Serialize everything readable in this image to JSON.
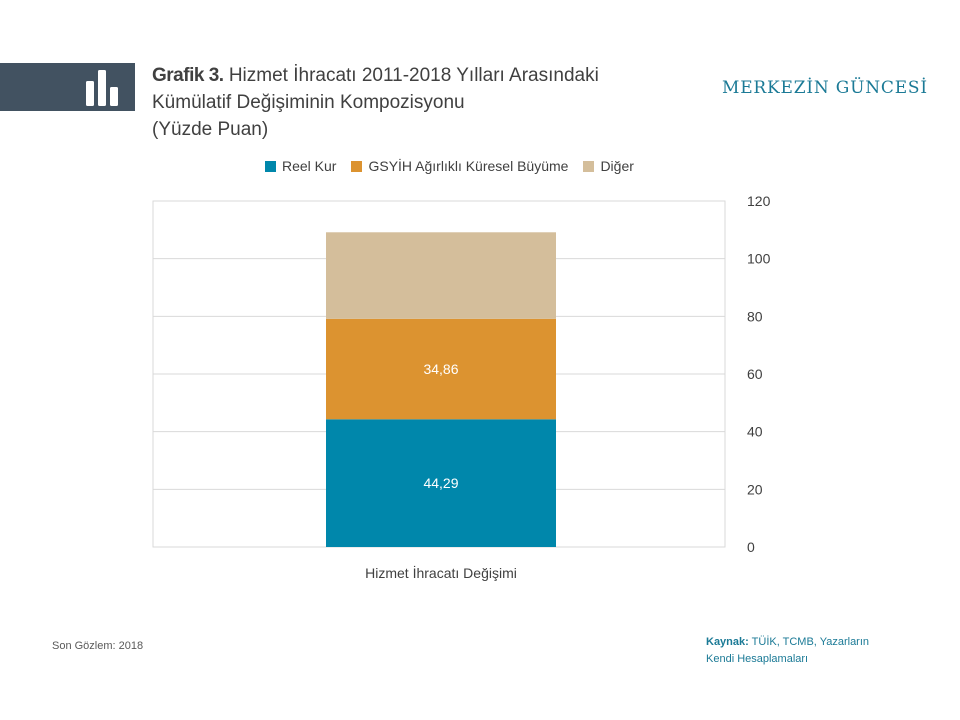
{
  "header": {
    "title_label": "Grafik 3.",
    "title_lines": [
      "Hizmet İhracatı 2011-2018 Yılları Arasındaki",
      "Kümülatif Değişiminin Kompozisyonu",
      "(Yüzde Puan)"
    ],
    "brand": "MERKEZİN GÜNCESİ",
    "logo_icon": "bar-chart-icon"
  },
  "colors": {
    "reel_kur": "#0087ab",
    "gsyih": "#dc9330",
    "diger": "#d4be9b",
    "logo_bg": "#425261",
    "accent": "#1b7a96"
  },
  "chart_data": {
    "type": "bar",
    "stacked": true,
    "categories": [
      "Hizmet İhracatı Değişimi"
    ],
    "series": [
      {
        "name": "Reel Kur",
        "values": [
          44.29
        ],
        "label": "44,29"
      },
      {
        "name": "GSYİH Ağırlıklı Küresel Büyüme",
        "values": [
          34.86
        ],
        "label": "34,86"
      },
      {
        "name": "Diğer",
        "values": [
          30.0
        ],
        "label": ""
      }
    ],
    "ylim": [
      0,
      120
    ],
    "yticks": [
      "0",
      "20",
      "40",
      "60",
      "80",
      "100",
      "120"
    ],
    "y_axis_side": "right",
    "grid": true,
    "legend": "top"
  },
  "footer": {
    "last_observation": "Son Gözlem: 2018",
    "source_label": "Kaynak:",
    "source_text_line1": "TÜİK, TCMB, Yazarların",
    "source_text_line2": "Kendi Hesaplamaları"
  }
}
